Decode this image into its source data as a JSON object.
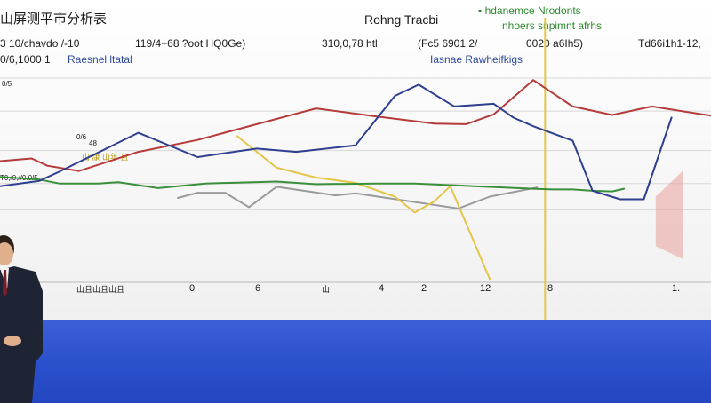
{
  "screen": {
    "title": "山屏测平市分析表",
    "center_title": "Rohng Tracbi",
    "legend_green": "▪ hdanemce Nrodonts",
    "legend_green_sub": "nhoers snpimnt afrhs",
    "row1": [
      "3 10/chavdo /-10",
      "119/4+68 ?oot HQ0Ge)",
      "310,0,78 htl",
      "(Fc5 6901 2/",
      "0020 a6Ih5)",
      "Td66i1h1-12,"
    ],
    "row2_left": "0/6,1000 1",
    "legend_blue_left": "Raesnel ltatal",
    "legend_blue_right": "Iasnae Rawheifkigs",
    "legend_yellow": "山 康 山年 且",
    "left_small_a": "0/5",
    "left_small_b": "0/6",
    "left_small_c": "48",
    "left_small_d": "T0,/0,//0.0/5",
    "x_ticks": [
      "山且山且山且",
      "0",
      "6",
      "山",
      "4",
      "2",
      "12",
      "8",
      "1."
    ]
  },
  "chart_data": {
    "type": "line",
    "title": "Rohng Tracbi",
    "grid": true,
    "legend_placement": "top",
    "colors": {
      "green": "#3a8f3a",
      "red": "#b53a3a",
      "blue": "#2e3f8f",
      "yellow": "#e3c64a",
      "gray": "#9a9a9a",
      "pink": "#e8a19a"
    },
    "series": [
      {
        "color": "green",
        "values": [
          [
            0,
            20
          ],
          [
            1,
            16
          ],
          [
            1.5,
            10
          ],
          [
            2.5,
            10
          ],
          [
            3,
            12
          ],
          [
            4,
            3
          ],
          [
            4.5,
            6
          ],
          [
            5.2,
            10
          ],
          [
            7,
            13
          ],
          [
            8,
            9
          ],
          [
            9.5,
            10
          ],
          [
            10.5,
            10
          ],
          [
            12,
            6
          ],
          [
            13.5,
            2
          ],
          [
            14,
            1
          ],
          [
            14.5,
            1
          ],
          [
            15,
            -1
          ],
          [
            15.5,
            -2
          ],
          [
            15.8,
            2
          ]
        ]
      },
      {
        "color": "red",
        "values": [
          [
            0,
            44
          ],
          [
            0.8,
            48
          ],
          [
            1.2,
            37
          ],
          [
            2,
            29
          ],
          [
            3.5,
            58
          ],
          [
            5,
            76
          ],
          [
            8,
            124
          ],
          [
            9.5,
            112
          ],
          [
            11,
            101
          ],
          [
            11.8,
            100
          ],
          [
            12.5,
            115
          ],
          [
            13.5,
            167
          ],
          [
            14.5,
            127
          ],
          [
            15.5,
            114
          ],
          [
            16.5,
            127
          ],
          [
            18,
            113
          ]
        ]
      },
      {
        "color": "blue",
        "values": [
          [
            0,
            6
          ],
          [
            1,
            14
          ],
          [
            1.5,
            28
          ],
          [
            3.5,
            87
          ],
          [
            5,
            50
          ],
          [
            6.5,
            63
          ],
          [
            7.5,
            58
          ],
          [
            9,
            68
          ],
          [
            10,
            143
          ],
          [
            10.6,
            160
          ],
          [
            11.5,
            127
          ],
          [
            12.5,
            131
          ],
          [
            13,
            110
          ],
          [
            13.5,
            97
          ],
          [
            14.5,
            75
          ],
          [
            15,
            -1
          ],
          [
            15.7,
            -14
          ],
          [
            16.3,
            -14
          ],
          [
            17,
            110
          ]
        ]
      },
      {
        "color": "yellow",
        "values": [
          [
            6,
            82
          ],
          [
            7,
            34
          ],
          [
            8,
            19
          ],
          [
            9,
            11
          ],
          [
            10,
            -10
          ],
          [
            10.5,
            -34
          ],
          [
            11,
            -17
          ],
          [
            11.4,
            6
          ],
          [
            12.4,
            -135
          ]
        ]
      },
      {
        "color": "gray",
        "values": [
          [
            4.5,
            -12
          ],
          [
            5,
            -4
          ],
          [
            5.7,
            -4
          ],
          [
            6.3,
            -26
          ],
          [
            7,
            5
          ],
          [
            8.5,
            -8
          ],
          [
            9,
            -5
          ],
          [
            11.6,
            -28
          ],
          [
            12.4,
            -10
          ],
          [
            13.6,
            4
          ]
        ]
      }
    ]
  }
}
